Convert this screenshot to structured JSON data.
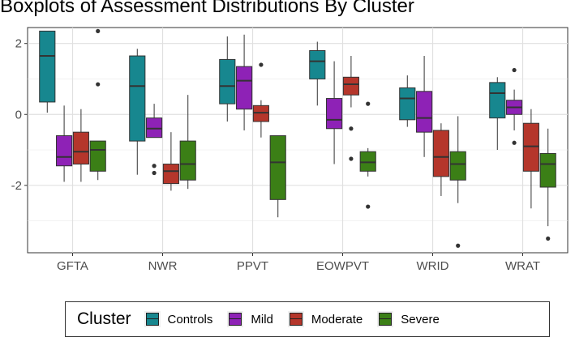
{
  "chart_data": {
    "type": "boxplot",
    "title": "Boxplots of Assessment Distributions By Cluster",
    "xlabel": "",
    "ylabel": "",
    "categories": [
      "GFTA",
      "NWR",
      "PPVT",
      "EOWPVT",
      "WRID",
      "WRAT"
    ],
    "ylim": [
      -3.9,
      2.45
    ],
    "yticks": [
      -2,
      0,
      2
    ],
    "ytick_labels": [
      "-2",
      "0",
      "2"
    ],
    "grid": true,
    "legend": {
      "title": "Cluster",
      "position": "bottom"
    },
    "series": [
      {
        "name": "Controls",
        "color": "#17878f",
        "boxes": [
          {
            "min": 0.05,
            "q1": 0.35,
            "median": 1.65,
            "q3": 2.35,
            "max": 2.35,
            "outliers": []
          },
          {
            "min": -1.7,
            "q1": -0.75,
            "median": 0.8,
            "q3": 1.65,
            "max": 1.85,
            "outliers": []
          },
          {
            "min": -0.2,
            "q1": 0.3,
            "median": 0.8,
            "q3": 1.55,
            "max": 2.2,
            "outliers": []
          },
          {
            "min": 0.25,
            "q1": 1.0,
            "median": 1.5,
            "q3": 1.8,
            "max": 2.05,
            "outliers": []
          },
          {
            "min": -0.35,
            "q1": -0.15,
            "median": 0.45,
            "q3": 0.75,
            "max": 1.1,
            "outliers": []
          },
          {
            "min": -1.0,
            "q1": -0.1,
            "median": 0.6,
            "q3": 0.9,
            "max": 1.05,
            "outliers": []
          }
        ]
      },
      {
        "name": "Mild",
        "color": "#8e22b6",
        "boxes": [
          {
            "min": -1.9,
            "q1": -1.45,
            "median": -1.2,
            "q3": -0.6,
            "max": 0.25,
            "outliers": []
          },
          {
            "min": -0.65,
            "q1": -0.65,
            "median": -0.4,
            "q3": -0.1,
            "max": 0.3,
            "outliers": [
              -1.45,
              -1.65
            ]
          },
          {
            "min": -0.45,
            "q1": 0.15,
            "median": 0.95,
            "q3": 1.35,
            "max": 2.25,
            "outliers": []
          },
          {
            "min": -1.4,
            "q1": -0.4,
            "median": -0.15,
            "q3": 0.45,
            "max": 1.5,
            "outliers": []
          },
          {
            "min": -1.2,
            "q1": -0.5,
            "median": -0.1,
            "q3": 0.65,
            "max": 1.65,
            "outliers": []
          },
          {
            "min": -0.45,
            "q1": 0.0,
            "median": 0.2,
            "q3": 0.4,
            "max": 0.7,
            "outliers": [
              1.25,
              -0.8
            ]
          }
        ]
      },
      {
        "name": "Moderate",
        "color": "#b5362b",
        "boxes": [
          {
            "min": -1.9,
            "q1": -1.4,
            "median": -1.05,
            "q3": -0.5,
            "max": 0.15,
            "outliers": []
          },
          {
            "min": -2.15,
            "q1": -1.95,
            "median": -1.6,
            "q3": -1.4,
            "max": -0.5,
            "outliers": []
          },
          {
            "min": -0.65,
            "q1": -0.2,
            "median": 0.05,
            "q3": 0.25,
            "max": 0.4,
            "outliers": [
              1.4
            ]
          },
          {
            "min": 0.2,
            "q1": 0.55,
            "median": 0.85,
            "q3": 1.05,
            "max": 1.65,
            "outliers": [
              -0.4,
              -1.25
            ]
          },
          {
            "min": -2.3,
            "q1": -1.75,
            "median": -1.2,
            "q3": -0.45,
            "max": -0.25,
            "outliers": []
          },
          {
            "min": -2.65,
            "q1": -1.6,
            "median": -0.9,
            "q3": -0.25,
            "max": 0.15,
            "outliers": []
          }
        ]
      },
      {
        "name": "Severe",
        "color": "#3b7f16",
        "boxes": [
          {
            "min": -1.85,
            "q1": -1.6,
            "median": -1.0,
            "q3": -0.75,
            "max": -0.75,
            "outliers": [
              2.35,
              0.85
            ]
          },
          {
            "min": -2.1,
            "q1": -1.85,
            "median": -1.4,
            "q3": -0.75,
            "max": 0.55,
            "outliers": []
          },
          {
            "min": -2.9,
            "q1": -2.4,
            "median": -1.35,
            "q3": -0.6,
            "max": -0.6,
            "outliers": []
          },
          {
            "min": -1.75,
            "q1": -1.6,
            "median": -1.35,
            "q3": -1.05,
            "max": -0.95,
            "outliers": [
              0.3,
              -2.6
            ]
          },
          {
            "min": -2.5,
            "q1": -1.85,
            "median": -1.4,
            "q3": -1.05,
            "max": -0.05,
            "outliers": [
              -3.7
            ]
          },
          {
            "min": -3.15,
            "q1": -2.05,
            "median": -1.4,
            "q3": -1.1,
            "max": -0.4,
            "outliers": [
              -3.5
            ]
          }
        ]
      }
    ]
  }
}
